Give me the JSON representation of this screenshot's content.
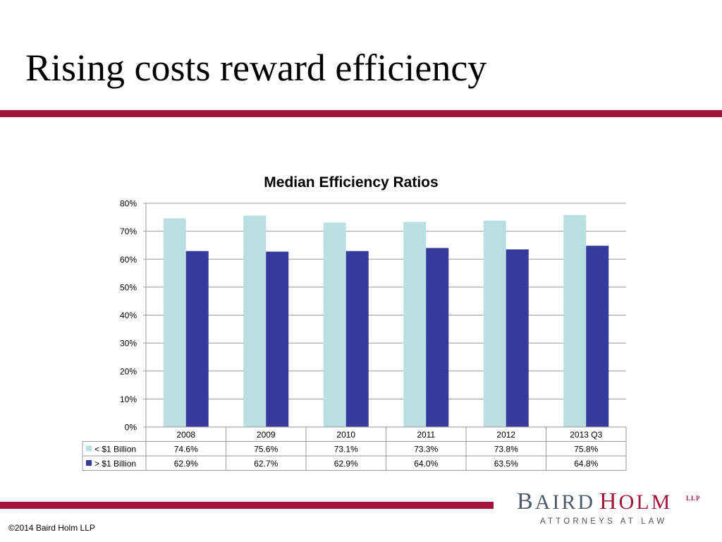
{
  "slide": {
    "title": "Rising costs reward efficiency",
    "footer": "©2014 Baird Holm LLP",
    "accent_color": "#a3163a"
  },
  "logo": {
    "name_part1_initial": "B",
    "name_part1_rest": "AIRD",
    "name_part2_initial": "H",
    "name_part2_rest": "OLM",
    "suffix": "LLP",
    "tagline": "ATTORNEYS AT LAW",
    "part1_color": "#4e5b6b",
    "part2_color": "#a3163a"
  },
  "chart_data": {
    "type": "bar",
    "title": "Median Efficiency Ratios",
    "categories": [
      "2008",
      "2009",
      "2010",
      "2011",
      "2012",
      "2013 Q3"
    ],
    "series": [
      {
        "name": "< $1 Billion",
        "values": [
          74.6,
          75.6,
          73.1,
          73.3,
          73.8,
          75.8
        ],
        "labels": [
          "74.6%",
          "75.6%",
          "73.1%",
          "73.3%",
          "73.8%",
          "75.8%"
        ],
        "color": "#b8e0e3"
      },
      {
        "name": "> $1 Billion",
        "values": [
          62.9,
          62.7,
          62.9,
          64.0,
          63.5,
          64.8
        ],
        "labels": [
          "62.9%",
          "62.7%",
          "62.9%",
          "64.0%",
          "63.5%",
          "64.8%"
        ],
        "color": "#363a9c"
      }
    ],
    "yticks": [
      "0%",
      "10%",
      "20%",
      "30%",
      "40%",
      "50%",
      "60%",
      "70%",
      "80%"
    ],
    "ylim": [
      0,
      80
    ],
    "grid": true,
    "legend": "data-table"
  }
}
